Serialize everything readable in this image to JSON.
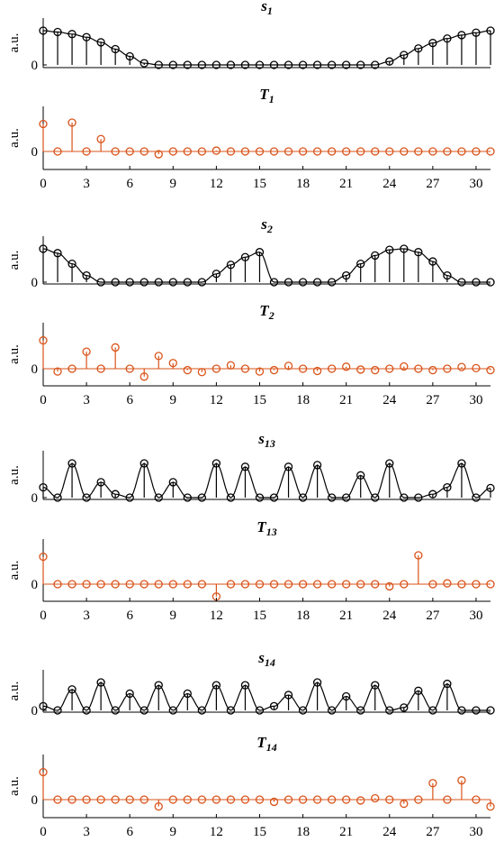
{
  "colors": {
    "signal": "#000000",
    "transform": "#d95319",
    "axis": "#000000"
  },
  "chart_data": [
    {
      "type": "stem",
      "title": "s",
      "title_sub": "1",
      "ylabel": "a.u.",
      "yticks": [
        "0"
      ],
      "xlim": [
        0,
        31
      ],
      "ylim": [
        -0.1,
        1.2
      ],
      "x": [
        0,
        1,
        2,
        3,
        4,
        5,
        6,
        7,
        8,
        9,
        10,
        11,
        12,
        13,
        14,
        15,
        16,
        17,
        18,
        19,
        20,
        21,
        22,
        23,
        24,
        25,
        26,
        27,
        28,
        29,
        30,
        31
      ],
      "values": [
        1.0,
        0.96,
        0.9,
        0.81,
        0.66,
        0.46,
        0.25,
        0.05,
        0,
        0,
        0,
        0,
        0,
        0,
        0,
        0,
        0,
        0,
        0,
        0,
        0,
        0,
        0,
        0,
        0.1,
        0.29,
        0.48,
        0.64,
        0.77,
        0.87,
        0.94,
        1.0
      ],
      "envelope": true
    },
    {
      "type": "stem",
      "title": "T",
      "title_sub": "1",
      "ylabel": "a.u.",
      "yticks": [
        "0"
      ],
      "xlim": [
        0,
        31
      ],
      "ylim": [
        -0.6,
        1.4
      ],
      "x": [
        0,
        1,
        2,
        3,
        4,
        5,
        6,
        7,
        8,
        9,
        10,
        11,
        12,
        13,
        14,
        15,
        16,
        17,
        18,
        19,
        20,
        21,
        22,
        23,
        24,
        25,
        26,
        27,
        28,
        29,
        30,
        31
      ],
      "values": [
        1.0,
        0,
        1.05,
        0,
        0.45,
        0,
        0,
        0,
        -0.1,
        0,
        0,
        0,
        0.03,
        0,
        0,
        0,
        0,
        0,
        0,
        0,
        0,
        0,
        0,
        0,
        0,
        0,
        0,
        0,
        0,
        0,
        0,
        0
      ],
      "xticks": [
        "0",
        "3",
        "6",
        "9",
        "12",
        "15",
        "18",
        "21",
        "24",
        "27",
        "30"
      ]
    },
    {
      "type": "stem",
      "title": "s",
      "title_sub": "2",
      "ylabel": "a.u.",
      "yticks": [
        "0"
      ],
      "xlim": [
        0,
        31
      ],
      "ylim": [
        -0.1,
        1.2
      ],
      "x": [
        0,
        1,
        2,
        3,
        4,
        5,
        6,
        7,
        8,
        9,
        10,
        11,
        12,
        13,
        14,
        15,
        16,
        17,
        18,
        19,
        20,
        21,
        22,
        23,
        24,
        25,
        26,
        27,
        28,
        29,
        30,
        31
      ],
      "values": [
        1.0,
        0.87,
        0.55,
        0.2,
        0,
        0,
        0,
        0,
        0,
        0,
        0,
        0,
        0.25,
        0.52,
        0.75,
        0.9,
        0,
        0,
        0,
        0,
        0,
        0.2,
        0.55,
        0.8,
        0.97,
        1.0,
        0.9,
        0.62,
        0.2,
        0,
        0,
        0
      ],
      "envelope": true
    },
    {
      "type": "stem",
      "title": "T",
      "title_sub": "2",
      "ylabel": "a.u.",
      "yticks": [
        "0"
      ],
      "xlim": [
        0,
        31
      ],
      "ylim": [
        -0.6,
        1.4
      ],
      "x": [
        0,
        1,
        2,
        3,
        4,
        5,
        6,
        7,
        8,
        9,
        10,
        11,
        12,
        13,
        14,
        15,
        16,
        17,
        18,
        19,
        20,
        21,
        22,
        23,
        24,
        25,
        26,
        27,
        28,
        29,
        30,
        31
      ],
      "values": [
        1.0,
        -0.1,
        0,
        0.6,
        0,
        0.75,
        0,
        -0.28,
        0.45,
        0.2,
        -0.05,
        -0.12,
        0,
        0.12,
        0,
        -0.1,
        -0.05,
        0.1,
        0,
        -0.08,
        0,
        0.07,
        -0.03,
        -0.05,
        0,
        0.08,
        0,
        -0.05,
        0,
        0.06,
        0.02,
        -0.05
      ],
      "xticks": [
        "0",
        "3",
        "6",
        "9",
        "12",
        "15",
        "18",
        "21",
        "24",
        "27",
        "30"
      ]
    },
    {
      "type": "stem",
      "title": "s",
      "title_sub": "13",
      "ylabel": "a.u.",
      "yticks": [
        "0"
      ],
      "xlim": [
        0,
        31
      ],
      "ylim": [
        -0.1,
        1.2
      ],
      "x": [
        0,
        1,
        2,
        3,
        4,
        5,
        6,
        7,
        8,
        9,
        10,
        11,
        12,
        13,
        14,
        15,
        16,
        17,
        18,
        19,
        20,
        21,
        22,
        23,
        24,
        25,
        26,
        27,
        28,
        29,
        30,
        31
      ],
      "values": [
        0.3,
        0,
        1.0,
        0,
        0.45,
        0.1,
        0,
        1.0,
        0,
        0.45,
        0,
        0,
        1.0,
        0,
        0.9,
        0,
        0,
        0.9,
        0,
        0.95,
        0,
        0,
        0.65,
        0,
        1.0,
        0,
        0,
        0.1,
        0.3,
        1.0,
        0,
        0.28
      ],
      "envelope": true
    },
    {
      "type": "stem",
      "title": "T",
      "title_sub": "13",
      "ylabel": "a.u.",
      "yticks": [
        "0"
      ],
      "xlim": [
        0,
        31
      ],
      "ylim": [
        -0.6,
        1.4
      ],
      "x": [
        0,
        1,
        2,
        3,
        4,
        5,
        6,
        7,
        8,
        9,
        10,
        11,
        12,
        13,
        14,
        15,
        16,
        17,
        18,
        19,
        20,
        21,
        22,
        23,
        24,
        25,
        26,
        27,
        28,
        29,
        30,
        31
      ],
      "values": [
        1.0,
        0,
        0,
        0,
        0,
        0,
        0,
        0,
        0,
        0,
        0,
        0,
        -0.45,
        0,
        0,
        0,
        0,
        0,
        0,
        0,
        0,
        0,
        0,
        0,
        -0.08,
        0,
        1.05,
        0,
        0.03,
        0,
        0,
        0
      ],
      "xticks": [
        "0",
        "3",
        "6",
        "9",
        "12",
        "15",
        "18",
        "21",
        "24",
        "27",
        "30"
      ]
    },
    {
      "type": "stem",
      "title": "s",
      "title_sub": "14",
      "ylabel": "a.u.",
      "yticks": [
        "0"
      ],
      "xlim": [
        0,
        31
      ],
      "ylim": [
        -0.1,
        1.2
      ],
      "x": [
        0,
        1,
        2,
        3,
        4,
        5,
        6,
        7,
        8,
        9,
        10,
        11,
        12,
        13,
        14,
        15,
        16,
        17,
        18,
        19,
        20,
        21,
        22,
        23,
        24,
        25,
        26,
        27,
        28,
        29,
        30,
        31
      ],
      "values": [
        0.15,
        0,
        0.75,
        0,
        1.0,
        0,
        0.6,
        0,
        0.9,
        0,
        0.6,
        0,
        0.9,
        0,
        0.9,
        0,
        0.15,
        0.55,
        0,
        1.0,
        0,
        0.5,
        0,
        0.9,
        0,
        0.1,
        0.7,
        0,
        0.95,
        0,
        0,
        0
      ],
      "envelope": true
    },
    {
      "type": "stem",
      "title": "T",
      "title_sub": "14",
      "ylabel": "a.u.",
      "yticks": [
        "0"
      ],
      "xlim": [
        0,
        31
      ],
      "ylim": [
        -0.6,
        1.4
      ],
      "x": [
        0,
        1,
        2,
        3,
        4,
        5,
        6,
        7,
        8,
        9,
        10,
        11,
        12,
        13,
        14,
        15,
        16,
        17,
        18,
        19,
        20,
        21,
        22,
        23,
        24,
        25,
        26,
        27,
        28,
        29,
        30,
        31
      ],
      "values": [
        1.0,
        0,
        0,
        0,
        0,
        0,
        0,
        0,
        -0.25,
        0,
        0,
        0,
        0,
        0,
        0,
        0,
        -0.08,
        0,
        0,
        0,
        0,
        0,
        -0.03,
        0.05,
        0,
        -0.15,
        0,
        0.6,
        0,
        0.7,
        0,
        -0.25
      ],
      "xticks": [
        "0",
        "3",
        "6",
        "9",
        "12",
        "15",
        "18",
        "21",
        "24",
        "27",
        "30"
      ]
    }
  ]
}
